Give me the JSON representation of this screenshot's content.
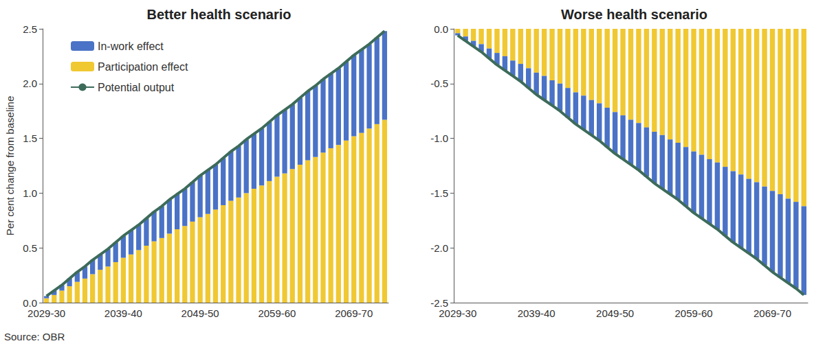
{
  "chart_data": [
    {
      "type": "bar",
      "title": "Better health scenario",
      "y_label": "Per cent change from baseline",
      "annotations": [
        "Source: OBR"
      ],
      "stacked": true,
      "grid": false,
      "legend": "upper left",
      "categories": [
        "2029-30",
        null,
        null,
        null,
        null,
        null,
        null,
        null,
        null,
        null,
        "2039-40",
        null,
        null,
        null,
        null,
        null,
        null,
        null,
        null,
        null,
        "2049-50",
        null,
        null,
        null,
        null,
        null,
        null,
        null,
        null,
        null,
        "2059-60",
        null,
        null,
        null,
        null,
        null,
        null,
        null,
        null,
        null,
        "2069-70",
        null,
        null,
        null,
        null
      ],
      "series": [
        {
          "name": "In-work effect",
          "type": "bar",
          "color": "#4a72c6",
          "values": [
            0.02,
            0.04,
            0.05,
            0.07,
            0.09,
            0.11,
            0.13,
            0.14,
            0.16,
            0.18,
            0.2,
            0.22,
            0.23,
            0.25,
            0.27,
            0.29,
            0.31,
            0.32,
            0.34,
            0.36,
            0.38,
            0.4,
            0.41,
            0.43,
            0.45,
            0.47,
            0.49,
            0.5,
            0.52,
            0.54,
            0.56,
            0.58,
            0.59,
            0.61,
            0.63,
            0.65,
            0.67,
            0.68,
            0.7,
            0.72,
            0.74,
            0.76,
            0.77,
            0.79,
            0.81
          ]
        },
        {
          "name": "Participation effect",
          "type": "bar",
          "color": "#f0c832",
          "values": [
            0.04,
            0.07,
            0.11,
            0.15,
            0.19,
            0.22,
            0.26,
            0.3,
            0.33,
            0.37,
            0.41,
            0.44,
            0.48,
            0.52,
            0.56,
            0.59,
            0.63,
            0.67,
            0.7,
            0.74,
            0.78,
            0.81,
            0.85,
            0.89,
            0.93,
            0.96,
            1.0,
            1.04,
            1.07,
            1.11,
            1.15,
            1.18,
            1.22,
            1.26,
            1.3,
            1.33,
            1.37,
            1.41,
            1.44,
            1.48,
            1.52,
            1.55,
            1.59,
            1.63,
            1.67
          ]
        },
        {
          "name": "Potential output",
          "type": "line",
          "color": "#3d6b5a",
          "values": [
            0.06,
            0.11,
            0.16,
            0.22,
            0.28,
            0.33,
            0.39,
            0.44,
            0.49,
            0.55,
            0.61,
            0.66,
            0.71,
            0.77,
            0.83,
            0.88,
            0.94,
            0.99,
            1.04,
            1.1,
            1.16,
            1.21,
            1.26,
            1.32,
            1.38,
            1.43,
            1.49,
            1.54,
            1.59,
            1.65,
            1.71,
            1.76,
            1.81,
            1.87,
            1.93,
            1.98,
            2.04,
            2.09,
            2.14,
            2.2,
            2.26,
            2.31,
            2.36,
            2.42,
            2.48
          ]
        }
      ],
      "ylim": [
        0,
        2.5
      ],
      "yticks": [
        {
          "value": 0,
          "label": "0.0"
        },
        0.5,
        {
          "value": 1,
          "label": "1.0"
        },
        1.5,
        {
          "value": 2,
          "label": "2.0"
        },
        2.5
      ]
    },
    {
      "type": "bar",
      "title": "Worse health scenario",
      "stacked": true,
      "grid": false,
      "legend": "none",
      "categories": [
        "2029-30",
        null,
        null,
        null,
        null,
        null,
        null,
        null,
        null,
        null,
        "2039-40",
        null,
        null,
        null,
        null,
        null,
        null,
        null,
        null,
        null,
        "2049-50",
        null,
        null,
        null,
        null,
        null,
        null,
        null,
        null,
        null,
        "2059-60",
        null,
        null,
        null,
        null,
        null,
        null,
        null,
        null,
        null,
        "2069-70",
        null,
        null,
        null,
        null
      ],
      "series": [
        {
          "name": "In-work effect",
          "type": "bar",
          "color": "#4a72c6",
          "values": [
            -0.02,
            -0.04,
            -0.05,
            -0.07,
            -0.09,
            -0.11,
            -0.13,
            -0.14,
            -0.16,
            -0.18,
            -0.2,
            -0.22,
            -0.23,
            -0.25,
            -0.27,
            -0.29,
            -0.31,
            -0.32,
            -0.34,
            -0.36,
            -0.38,
            -0.4,
            -0.41,
            -0.43,
            -0.45,
            -0.47,
            -0.49,
            -0.5,
            -0.52,
            -0.54,
            -0.56,
            -0.58,
            -0.59,
            -0.61,
            -0.63,
            -0.65,
            -0.67,
            -0.68,
            -0.7,
            -0.72,
            -0.74,
            -0.76,
            -0.77,
            -0.79,
            -0.81
          ]
        },
        {
          "name": "Participation effect",
          "type": "bar",
          "color": "#f0c832",
          "values": [
            -0.04,
            -0.07,
            -0.11,
            -0.14,
            -0.18,
            -0.22,
            -0.25,
            -0.29,
            -0.32,
            -0.36,
            -0.4,
            -0.43,
            -0.47,
            -0.5,
            -0.54,
            -0.58,
            -0.61,
            -0.65,
            -0.68,
            -0.72,
            -0.76,
            -0.79,
            -0.83,
            -0.86,
            -0.9,
            -0.94,
            -0.97,
            -1.01,
            -1.04,
            -1.08,
            -1.12,
            -1.15,
            -1.19,
            -1.22,
            -1.26,
            -1.3,
            -1.33,
            -1.37,
            -1.4,
            -1.44,
            -1.48,
            -1.51,
            -1.55,
            -1.58,
            -1.62
          ]
        },
        {
          "name": "Potential output",
          "type": "line",
          "color": "#3d6b5a",
          "values": [
            -0.06,
            -0.11,
            -0.16,
            -0.21,
            -0.27,
            -0.33,
            -0.38,
            -0.43,
            -0.48,
            -0.54,
            -0.6,
            -0.65,
            -0.7,
            -0.75,
            -0.81,
            -0.87,
            -0.92,
            -0.97,
            -1.02,
            -1.08,
            -1.14,
            -1.19,
            -1.24,
            -1.29,
            -1.35,
            -1.41,
            -1.46,
            -1.51,
            -1.56,
            -1.62,
            -1.68,
            -1.73,
            -1.78,
            -1.83,
            -1.89,
            -1.95,
            -2.0,
            -2.05,
            -2.1,
            -2.16,
            -2.22,
            -2.27,
            -2.32,
            -2.37,
            -2.43
          ]
        }
      ],
      "ylim": [
        -2.5,
        0
      ],
      "yticks": [
        {
          "value": -2.5,
          "label": "-2.5"
        },
        {
          "value": -2,
          "label": "-2.0"
        },
        -1.5,
        {
          "value": -1,
          "label": "-1.0"
        },
        -0.5,
        {
          "value": 0,
          "label": "0.0"
        }
      ]
    }
  ]
}
